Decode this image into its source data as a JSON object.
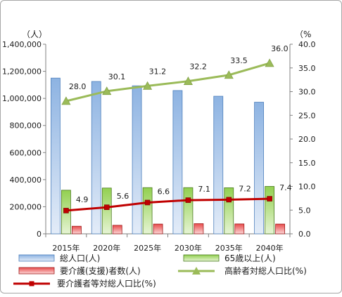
{
  "chart_data": {
    "type": "bar",
    "categories": [
      "2015年",
      "2020年",
      "2025年",
      "2030年",
      "2035年",
      "2040年"
    ],
    "y_left_unit": "（人）",
    "y_right_unit": "（%",
    "y_left_ticks": [
      "0",
      "200,000",
      "400,000",
      "600,000",
      "800,000",
      "1,000,000",
      "1,200,000",
      "1,400,000"
    ],
    "y_right_ticks": [
      "0.0",
      "5.0",
      "10.0",
      "15.0",
      "20.0",
      "25.0",
      "30.0",
      "35.0",
      "40.0"
    ],
    "ylim_left": [
      0,
      1400000
    ],
    "ylim_right": [
      0,
      40
    ],
    "series": [
      {
        "name": "総人口(人)",
        "kind": "bar",
        "axis": "left",
        "color": "#8db3e2",
        "values": [
          1150000,
          1125000,
          1093000,
          1058000,
          1016000,
          972000
        ]
      },
      {
        "name": "65歳以上(人)",
        "kind": "bar",
        "axis": "left",
        "color": "#92d050",
        "values": [
          322000,
          338000,
          341000,
          341000,
          340000,
          350000
        ]
      },
      {
        "name": "要介護(支援)者数(人)",
        "kind": "bar",
        "axis": "left",
        "color": "#e84c4c",
        "values": [
          56000,
          63000,
          72000,
          75000,
          73000,
          72000
        ]
      },
      {
        "name": "高齢者対総人口比(%)",
        "kind": "line",
        "axis": "right",
        "color": "#9bbb59",
        "marker": "triangle",
        "values": [
          28.0,
          30.1,
          31.2,
          32.2,
          33.5,
          36.0
        ],
        "labels": [
          "28.0",
          "30.1",
          "31.2",
          "32.2",
          "33.5",
          "36.0"
        ]
      },
      {
        "name": "要介護者等対総人口比(%)",
        "kind": "line",
        "axis": "right",
        "color": "#c00000",
        "marker": "square",
        "values": [
          4.9,
          5.6,
          6.6,
          7.1,
          7.2,
          7.4
        ],
        "labels": [
          "4.9",
          "5.6",
          "6.6",
          "7.1",
          "7.2",
          "7.4"
        ]
      }
    ],
    "legend_position": "bottom",
    "grid": false
  }
}
